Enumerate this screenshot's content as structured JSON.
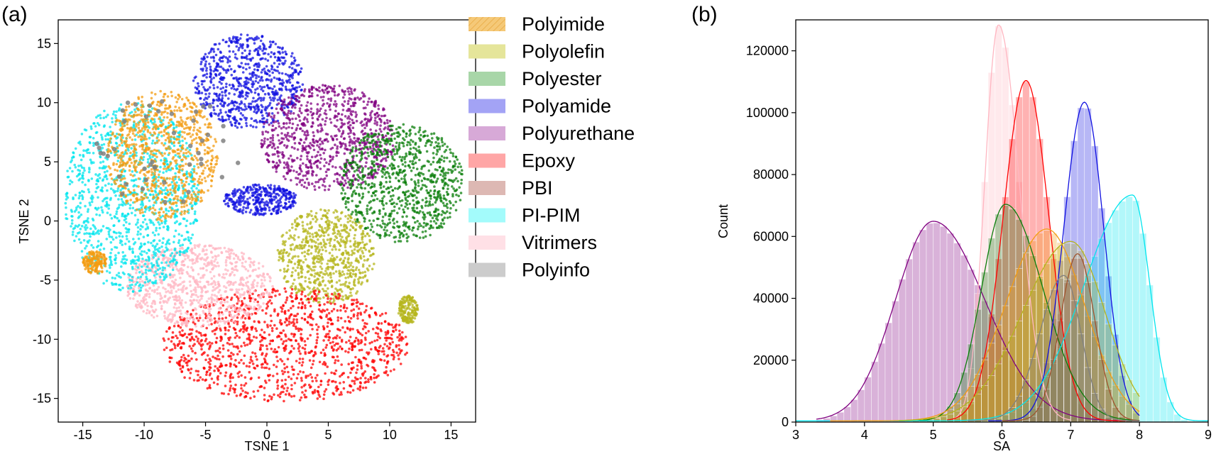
{
  "panels": {
    "a": {
      "label": "(a)",
      "colors": {
        "Polyimide": "#f39c12",
        "Polyolefin": "#b5b51c",
        "Polyester": "#0a7d0a",
        "Polyamide": "#1010e0",
        "Polyurethane": "#800080",
        "Epoxy": "#ff0000",
        "PBI": "#a0522d",
        "PI-PIM": "#00e5ee",
        "Vitrimers": "#ffb6c1",
        "Polyinfo": "#808080"
      }
    },
    "b": {
      "label": "(b)"
    }
  },
  "legend": {
    "items": [
      {
        "label": "Polyimide",
        "color": "#f5c978",
        "hatched": true
      },
      {
        "label": "Polyolefin",
        "color": "#e5e59a"
      },
      {
        "label": "Polyester",
        "color": "#a8d6a8"
      },
      {
        "label": "Polyamide",
        "color": "#a3a3f5"
      },
      {
        "label": "Polyurethane",
        "color": "#d7a9d7"
      },
      {
        "label": "Epoxy",
        "color": "#ffa6a6"
      },
      {
        "label": "PBI",
        "color": "#ddb8b3"
      },
      {
        "label": "PI-PIM",
        "color": "#a3fbfb"
      },
      {
        "label": "Vitrimers",
        "color": "#ffe0e6"
      },
      {
        "label": "Polyinfo",
        "color": "#cccccc"
      }
    ]
  },
  "chart_data": [
    {
      "type": "scatter",
      "xlabel": "TSNE 1",
      "ylabel": "TSNE 2",
      "xlim": [
        -17,
        17
      ],
      "ylim": [
        -17,
        17
      ],
      "xticks": [
        -15,
        -10,
        -5,
        0,
        5,
        10,
        15
      ],
      "yticks": [
        -15,
        -10,
        -5,
        0,
        5,
        10,
        15
      ],
      "clusters": [
        {
          "name": "Polyamide",
          "center": [
            -1.5,
            11.8
          ],
          "radius": [
            4.5,
            4.0
          ]
        },
        {
          "name": "Polyamide",
          "center": [
            -0.5,
            1.8
          ],
          "radius": [
            3.0,
            1.3
          ]
        },
        {
          "name": "Polyurethane",
          "center": [
            5.0,
            7.0
          ],
          "radius": [
            5.5,
            4.5
          ]
        },
        {
          "name": "Polyester",
          "center": [
            11.0,
            3.2
          ],
          "radius": [
            5.0,
            5.0
          ]
        },
        {
          "name": "Polyolefin",
          "center": [
            4.8,
            -3.0
          ],
          "radius": [
            4.0,
            4.0
          ]
        },
        {
          "name": "Polyolefin",
          "center": [
            11.5,
            -7.5
          ],
          "radius": [
            0.8,
            1.2
          ]
        },
        {
          "name": "Epoxy",
          "center": [
            1.5,
            -10.5
          ],
          "radius": [
            10.0,
            4.8
          ]
        },
        {
          "name": "Vitrimers",
          "center": [
            -5.5,
            -5.5
          ],
          "radius": [
            6.0,
            3.5
          ]
        },
        {
          "name": "PI-PIM",
          "center": [
            -11.0,
            2.0
          ],
          "radius": [
            5.5,
            8.0
          ]
        },
        {
          "name": "Polyimide",
          "center": [
            -8.5,
            5.5
          ],
          "radius": [
            4.5,
            5.5
          ]
        },
        {
          "name": "Polyimide",
          "center": [
            -14.0,
            -3.5
          ],
          "radius": [
            1.0,
            1.0
          ]
        },
        {
          "name": "Polyinfo",
          "center": [
            -8.0,
            6.0
          ],
          "radius": [
            6.0,
            5.0
          ]
        }
      ]
    },
    {
      "type": "histogram",
      "xlabel": "SA",
      "ylabel": "Count",
      "xlim": [
        3,
        9
      ],
      "ylim": [
        0,
        130000
      ],
      "xticks": [
        3,
        4,
        5,
        6,
        7,
        8,
        9
      ],
      "yticks": [
        0,
        20000,
        40000,
        60000,
        80000,
        100000,
        120000
      ],
      "series": [
        {
          "name": "Polyurethane",
          "color": "#800080",
          "peak_x": 5.0,
          "peak": 64500,
          "sigma_left": 0.55,
          "sigma_right": 0.75,
          "xmin": 3.3,
          "xmax": 8.0
        },
        {
          "name": "Vitrimers",
          "color": "#ffb6c1",
          "peak_x": 5.95,
          "peak": 128000,
          "sigma_left": 0.2,
          "sigma_right": 0.3,
          "xmin": 5.3,
          "xmax": 7.0
        },
        {
          "name": "Epoxy",
          "color": "#ff0000",
          "peak_x": 6.35,
          "peak": 110000,
          "sigma_left": 0.33,
          "sigma_right": 0.33,
          "xmin": 5.2,
          "xmax": 7.8
        },
        {
          "name": "Polyester",
          "color": "#0a7d0a",
          "peak_x": 6.05,
          "peak": 70000,
          "sigma_left": 0.35,
          "sigma_right": 0.55,
          "xmin": 4.5,
          "xmax": 8.0
        },
        {
          "name": "Polyamide",
          "color": "#1010e0",
          "peak_x": 7.2,
          "peak": 103000,
          "sigma_left": 0.3,
          "sigma_right": 0.28,
          "xmin": 5.8,
          "xmax": 8.0
        },
        {
          "name": "PI-PIM",
          "color": "#00e5ee",
          "peak_x": 7.9,
          "peak": 73000,
          "sigma_left": 0.7,
          "sigma_right": 0.25,
          "xmin": 3.0,
          "xmax": 9.0
        },
        {
          "name": "Polyimide",
          "color": "#f39c12",
          "peak_x": 6.65,
          "peak": 62000,
          "sigma_left": 0.6,
          "sigma_right": 0.55,
          "xmin": 3.5,
          "xmax": 8.0
        },
        {
          "name": "Polyolefin",
          "color": "#b5b51c",
          "peak_x": 7.0,
          "peak": 58000,
          "sigma_left": 0.7,
          "sigma_right": 0.5,
          "xmin": 4.5,
          "xmax": 8.0
        },
        {
          "name": "PBI",
          "color": "#a0522d",
          "peak_x": 7.1,
          "peak": 54000,
          "sigma_left": 0.25,
          "sigma_right": 0.25,
          "xmin": 6.0,
          "xmax": 8.0
        },
        {
          "name": "Polyinfo",
          "color": "#808080",
          "peak_x": 6.9,
          "peak": 47000,
          "sigma_left": 0.35,
          "sigma_right": 0.25,
          "xmin": 5.5,
          "xmax": 8.0
        }
      ]
    }
  ]
}
